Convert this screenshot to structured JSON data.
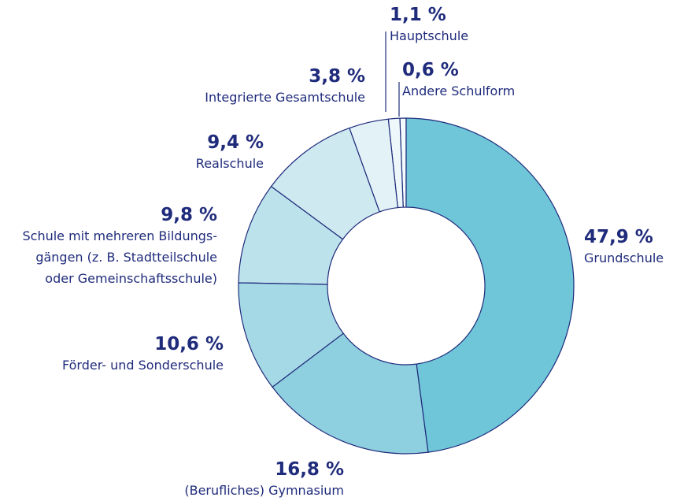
{
  "chart_data": {
    "type": "donut",
    "categories": [
      "Grundschule",
      "(Berufliches) Gymnasium",
      "Förder- und Sonderschule",
      "Schule mit mehreren Bildungs-\ngängen (z. B. Stadtteilschule\noder Gemeinschaftsschule)",
      "Realschule",
      "Integrierte Gesamtschule",
      "Hauptschule",
      "Andere Schulform"
    ],
    "values": [
      47.9,
      16.8,
      10.6,
      9.8,
      9.4,
      3.8,
      1.1,
      0.6
    ],
    "value_labels": [
      "47,9 %",
      "16,8 %",
      "10,6 %",
      "9,8 %",
      "9,4 %",
      "3,8 %",
      "1,1 %",
      "0,6 %"
    ],
    "colors": [
      "#6ec6d8",
      "#8ecfe0",
      "#a6d9e6",
      "#bce2ec",
      "#cfe9f1",
      "#e2f2f7",
      "#eef8fb",
      "#f4fbfd"
    ]
  }
}
